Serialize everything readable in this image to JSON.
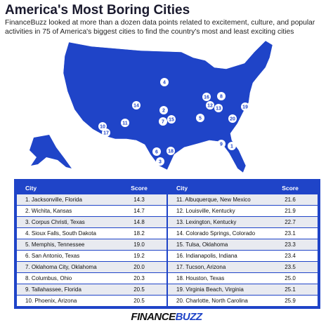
{
  "header": {
    "title": "America's Most Boring Cities",
    "subtitle": "FinanceBuzz looked at more than a dozen data points related to excitement, culture, and popular activities in 75 of America's biggest cities to find the country's most and least exciting cities"
  },
  "map": {
    "markers": [
      "1",
      "2",
      "3",
      "4",
      "5",
      "6",
      "7",
      "8",
      "9",
      "10",
      "11",
      "12",
      "13",
      "14",
      "15",
      "16",
      "17",
      "18",
      "19",
      "20"
    ]
  },
  "table": {
    "columns": [
      "City",
      "Score"
    ],
    "left_rows": [
      [
        "1. Jacksonville, Florida",
        "14.3"
      ],
      [
        "2. Wichita, Kansas",
        "14.7"
      ],
      [
        "3. Corpus Christi, Texas",
        "14.8"
      ],
      [
        "4. Sioux Falls, South Dakota",
        "18.2"
      ],
      [
        "5. Memphis, Tennessee",
        "19.0"
      ],
      [
        "6. San Antonio, Texas",
        "19.2"
      ],
      [
        "7. Oklahoma City, Oklahoma",
        "20.0"
      ],
      [
        "8. Columbus, Ohio",
        "20.3"
      ],
      [
        "9. Tallahassee, Florida",
        "20.5"
      ],
      [
        "10. Phoenix, Arizona",
        "20.5"
      ]
    ],
    "right_rows": [
      [
        "11. Albuquerque, New Mexico",
        "21.6"
      ],
      [
        "12. Louisville, Kentucky",
        "21.9"
      ],
      [
        "13. Lexington, Kentucky",
        "22.7"
      ],
      [
        "14. Colorado Springs, Colorado",
        "23.1"
      ],
      [
        "15. Tulsa, Oklahoma",
        "23.3"
      ],
      [
        "16. Indianapolis, Indiana",
        "23.4"
      ],
      [
        "17. Tucson, Arizona",
        "23.5"
      ],
      [
        "18. Houston, Texas",
        "25.0"
      ],
      [
        "19. Virginia Beach, Virginia",
        "25.1"
      ],
      [
        "20. Charlotte, North Carolina",
        "25.9"
      ]
    ]
  },
  "footer": {
    "logo_left": "FINANCE",
    "logo_right": "BUZZ"
  }
}
